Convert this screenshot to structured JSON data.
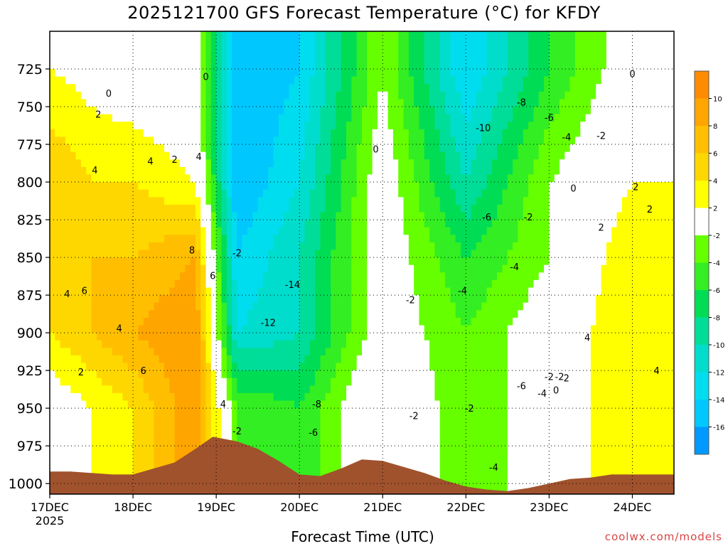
{
  "chart_data": {
    "type": "heatmap",
    "title": "2025121700 GFS Forecast Temperature (°C) for KFDY",
    "xlabel": "Forecast Time (UTC)",
    "ylabel": "",
    "x_ticks": [
      "17DEC",
      "18DEC",
      "19DEC",
      "20DEC",
      "21DEC",
      "22DEC",
      "23DEC",
      "24DEC"
    ],
    "x_start_label": "2025",
    "xlim_hours": [
      0,
      180
    ],
    "y_ticks": [
      725,
      750,
      775,
      800,
      825,
      850,
      875,
      900,
      925,
      950,
      975,
      1000
    ],
    "ylim_hpa": [
      700,
      1007
    ],
    "y_inverted": true,
    "grid": true,
    "colorbar": {
      "ticks": [
        10,
        8,
        6,
        4,
        2,
        -2,
        -4,
        -6,
        -8,
        -10,
        -12,
        -14,
        -16
      ],
      "bins": [
        {
          "lo": 10,
          "hi": 12,
          "color": "#ff8c00"
        },
        {
          "lo": 8,
          "hi": 10,
          "color": "#ffa500"
        },
        {
          "lo": 6,
          "hi": 8,
          "color": "#ffbf00"
        },
        {
          "lo": 4,
          "hi": 6,
          "color": "#ffd700"
        },
        {
          "lo": 2,
          "hi": 4,
          "color": "#ffff00"
        },
        {
          "lo": -2,
          "hi": 2,
          "color": "#ffffff"
        },
        {
          "lo": -4,
          "hi": -2,
          "color": "#66ff00"
        },
        {
          "lo": -6,
          "hi": -4,
          "color": "#33ee22"
        },
        {
          "lo": -8,
          "hi": -6,
          "color": "#00dd55"
        },
        {
          "lo": -10,
          "hi": -8,
          "color": "#00dd99"
        },
        {
          "lo": -12,
          "hi": -10,
          "color": "#00ddcc"
        },
        {
          "lo": -14,
          "hi": -12,
          "color": "#00ddee"
        },
        {
          "lo": -16,
          "hi": -14,
          "color": "#00c8ff"
        },
        {
          "lo": -18,
          "hi": -16,
          "color": "#0099ff"
        }
      ]
    },
    "surface_pressure_hpa": [
      [
        0,
        992
      ],
      [
        6,
        992
      ],
      [
        12,
        993
      ],
      [
        18,
        994
      ],
      [
        24,
        994
      ],
      [
        30,
        990
      ],
      [
        36,
        986
      ],
      [
        42,
        977
      ],
      [
        47,
        969
      ],
      [
        54,
        972
      ],
      [
        60,
        977
      ],
      [
        66,
        985
      ],
      [
        72,
        994
      ],
      [
        78,
        995
      ],
      [
        84,
        990
      ],
      [
        90,
        984
      ],
      [
        96,
        985
      ],
      [
        102,
        989
      ],
      [
        108,
        993
      ],
      [
        114,
        998
      ],
      [
        120,
        1002
      ],
      [
        126,
        1004
      ],
      [
        132,
        1005
      ],
      [
        138,
        1003
      ],
      [
        144,
        1000
      ],
      [
        150,
        997
      ],
      [
        156,
        996
      ],
      [
        162,
        994
      ],
      [
        168,
        994
      ],
      [
        174,
        994
      ],
      [
        180,
        994
      ]
    ],
    "temperature_keypoints_c": [
      {
        "hour": 0,
        "levels": {
          "725": 2,
          "800": 6,
          "850": 6,
          "900": 4,
          "950": 0
        }
      },
      {
        "hour": 12,
        "levels": {
          "725": 1,
          "800": 4,
          "850": 6,
          "900": 6,
          "950": 2
        }
      },
      {
        "hour": 24,
        "levels": {
          "725": 0,
          "800": 4,
          "850": 6,
          "900": 8,
          "950": 4
        }
      },
      {
        "hour": 42,
        "levels": {
          "725": -1,
          "800": 2,
          "850": 8,
          "900": 10,
          "950": 10
        }
      },
      {
        "hour": 54,
        "levels": {
          "725": -16,
          "800": -16,
          "850": -14,
          "900": -12,
          "950": -4
        }
      },
      {
        "hour": 72,
        "levels": {
          "725": -14,
          "800": -12,
          "850": -10,
          "900": -10,
          "950": -6
        }
      },
      {
        "hour": 96,
        "levels": {
          "725": -2,
          "800": 0,
          "850": 0,
          "900": 0,
          "950": 2
        }
      },
      {
        "hour": 120,
        "levels": {
          "725": -14,
          "800": -10,
          "850": -6,
          "900": -4,
          "950": -4
        }
      },
      {
        "hour": 144,
        "levels": {
          "725": -6,
          "800": -2,
          "850": -2,
          "900": 0,
          "950": 0
        }
      },
      {
        "hour": 168,
        "levels": {
          "725": 0,
          "800": 2,
          "850": 4,
          "900": 4,
          "950": 4
        }
      },
      {
        "hour": 180,
        "levels": {
          "725": 0,
          "800": 2,
          "850": 2,
          "900": 2,
          "950": 2
        }
      }
    ],
    "contour_labels": [
      {
        "text": "0",
        "hour": 45,
        "hpa": 730
      },
      {
        "text": "0",
        "hour": 17,
        "hpa": 741
      },
      {
        "text": "2",
        "hour": 14,
        "hpa": 755
      },
      {
        "text": "4",
        "hour": 13,
        "hpa": 792
      },
      {
        "text": "4",
        "hour": 29,
        "hpa": 786
      },
      {
        "text": "2",
        "hour": 36,
        "hpa": 785
      },
      {
        "text": "4",
        "hour": 43,
        "hpa": 783
      },
      {
        "text": "8",
        "hour": 41,
        "hpa": 845
      },
      {
        "text": "6",
        "hour": 47,
        "hpa": 862
      },
      {
        "text": "4",
        "hour": 5,
        "hpa": 874
      },
      {
        "text": "6",
        "hour": 10,
        "hpa": 872
      },
      {
        "text": "4",
        "hour": 20,
        "hpa": 897
      },
      {
        "text": "2",
        "hour": 9,
        "hpa": 926
      },
      {
        "text": "6",
        "hour": 27,
        "hpa": 925
      },
      {
        "text": "-2",
        "hour": 54,
        "hpa": 847
      },
      {
        "text": "-14",
        "hour": 70,
        "hpa": 868
      },
      {
        "text": "-12",
        "hour": 63,
        "hpa": 893
      },
      {
        "text": "4",
        "hour": 50,
        "hpa": 947
      },
      {
        "text": "-2",
        "hour": 54,
        "hpa": 965
      },
      {
        "text": "-8",
        "hour": 77,
        "hpa": 947
      },
      {
        "text": "-6",
        "hour": 76,
        "hpa": 966
      },
      {
        "text": "0",
        "hour": 94,
        "hpa": 778
      },
      {
        "text": "-2",
        "hour": 104,
        "hpa": 878
      },
      {
        "text": "-2",
        "hour": 105,
        "hpa": 955
      },
      {
        "text": "-10",
        "hour": 125,
        "hpa": 764
      },
      {
        "text": "-8",
        "hour": 136,
        "hpa": 747
      },
      {
        "text": "-6",
        "hour": 144,
        "hpa": 757
      },
      {
        "text": "-4",
        "hour": 149,
        "hpa": 770
      },
      {
        "text": "-2",
        "hour": 159,
        "hpa": 769
      },
      {
        "text": "0",
        "hour": 168,
        "hpa": 728
      },
      {
        "text": "-6",
        "hour": 126,
        "hpa": 823
      },
      {
        "text": "-2",
        "hour": 138,
        "hpa": 823
      },
      {
        "text": "0",
        "hour": 151,
        "hpa": 804
      },
      {
        "text": "2",
        "hour": 169,
        "hpa": 803
      },
      {
        "text": "2",
        "hour": 173,
        "hpa": 818
      },
      {
        "text": "2",
        "hour": 159,
        "hpa": 830
      },
      {
        "text": "-4",
        "hour": 119,
        "hpa": 872
      },
      {
        "text": "-4",
        "hour": 134,
        "hpa": 856
      },
      {
        "text": "4",
        "hour": 155,
        "hpa": 903
      },
      {
        "text": "4",
        "hour": 175,
        "hpa": 925
      },
      {
        "text": "-6",
        "hour": 136,
        "hpa": 935
      },
      {
        "text": "-4",
        "hour": 142,
        "hpa": 940
      },
      {
        "text": "-2",
        "hour": 144,
        "hpa": 929
      },
      {
        "text": "-2",
        "hour": 147,
        "hpa": 929
      },
      {
        "text": "0",
        "hour": 146,
        "hpa": 938
      },
      {
        "text": "2",
        "hour": 149,
        "hpa": 930
      },
      {
        "text": "-2",
        "hour": 121,
        "hpa": 950
      },
      {
        "text": "-4",
        "hour": 128,
        "hpa": 989
      }
    ]
  },
  "credit": "coolwx.com/models"
}
